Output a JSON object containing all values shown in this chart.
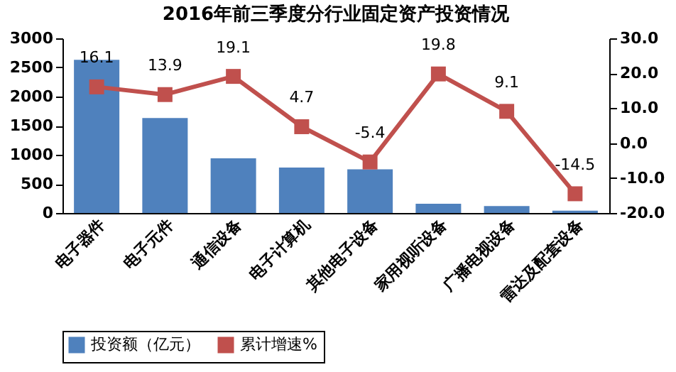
{
  "chart_data": {
    "type": "bar",
    "title": "2016年前三季度分行业固定资产投资情况",
    "categories": [
      "电子器件",
      "电子元件",
      "通信设备",
      "电子计算机",
      "其他电子设备",
      "家用视听设备",
      "广播电视设备",
      "雷达及配套设备"
    ],
    "series": [
      {
        "name": "投资额（亿元）",
        "color": "#4f81bd",
        "values": [
          2630,
          1630,
          940,
          780,
          750,
          160,
          120,
          40
        ]
      },
      {
        "name": "累计增速%",
        "type": "line",
        "axis": "y2",
        "color": "#c0504d",
        "marker": "square",
        "data_labels": true,
        "values": [
          16.1,
          13.9,
          19.1,
          4.7,
          -5.4,
          19.8,
          9.1,
          -14.5
        ]
      }
    ],
    "ylim": [
      0,
      3000
    ],
    "yticks": [
      0,
      500,
      1000,
      1500,
      2000,
      2500,
      3000
    ],
    "y2lim": [
      -20,
      30
    ],
    "y2ticks": [
      {
        "value": -20,
        "label": "-20.0"
      },
      {
        "value": -10,
        "label": "-10.0"
      },
      {
        "value": 0,
        "label": "0.0"
      },
      {
        "value": 10,
        "label": "10.0"
      },
      {
        "value": 20,
        "label": "20.0"
      },
      {
        "value": 30,
        "label": "30.0"
      }
    ],
    "grid": false,
    "legend": "bottom"
  }
}
